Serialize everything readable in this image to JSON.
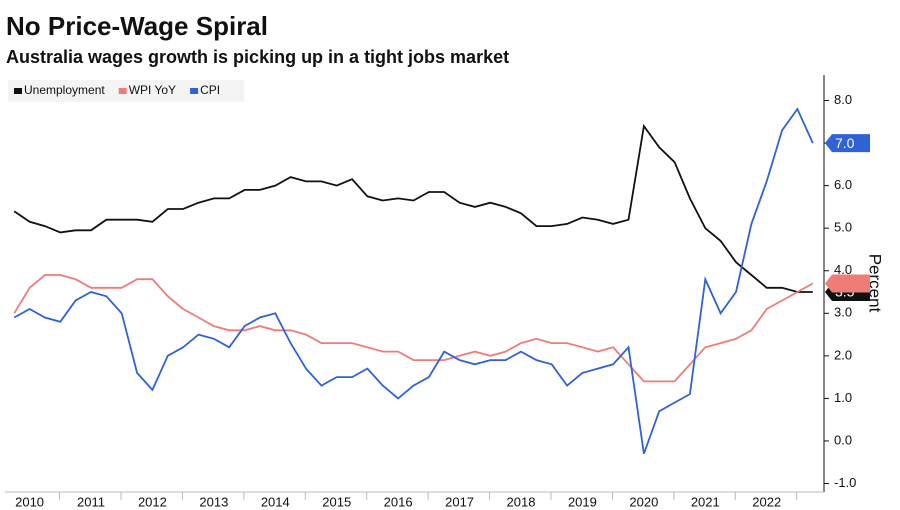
{
  "chart_data": {
    "type": "line",
    "title": "No Price-Wage Spiral",
    "subtitle": "Australia wages growth is picking up in a tight jobs market",
    "y_label": "Percent",
    "x": [
      2009.75,
      2010,
      2010.25,
      2010.5,
      2010.75,
      2011,
      2011.25,
      2011.5,
      2011.75,
      2012,
      2012.25,
      2012.5,
      2012.75,
      2013,
      2013.25,
      2013.5,
      2013.75,
      2014,
      2014.25,
      2014.5,
      2014.75,
      2015,
      2015.25,
      2015.5,
      2015.75,
      2016,
      2016.25,
      2016.5,
      2016.75,
      2017,
      2017.25,
      2017.5,
      2017.75,
      2018,
      2018.25,
      2018.5,
      2018.75,
      2019,
      2019.25,
      2019.5,
      2019.75,
      2020,
      2020.25,
      2020.5,
      2020.75,
      2021,
      2021.25,
      2021.5,
      2021.75,
      2022,
      2022.25,
      2022.5,
      2022.75
    ],
    "series": [
      {
        "name": "Unemployment",
        "color": "#111111",
        "values": [
          5.4,
          5.15,
          5.05,
          4.9,
          4.95,
          4.95,
          5.2,
          5.2,
          5.2,
          5.15,
          5.45,
          5.45,
          5.6,
          5.7,
          5.7,
          5.9,
          5.9,
          6.0,
          6.2,
          6.1,
          6.1,
          6.0,
          6.15,
          5.75,
          5.65,
          5.7,
          5.65,
          5.85,
          5.85,
          5.6,
          5.5,
          5.6,
          5.5,
          5.35,
          5.05,
          5.05,
          5.1,
          5.25,
          5.2,
          5.1,
          5.2,
          7.4,
          6.9,
          6.55,
          5.7,
          5.0,
          4.7,
          4.2,
          3.9,
          3.6,
          3.6,
          3.5,
          3.5
        ],
        "value_labels": [
          null,
          null,
          null,
          null,
          null,
          null,
          null,
          null,
          null,
          null,
          null,
          null,
          null,
          null,
          null,
          null,
          null,
          null,
          null,
          null,
          null,
          null,
          null,
          null,
          null,
          null,
          null,
          null,
          null,
          null,
          null,
          null,
          null,
          null,
          null,
          null,
          null,
          null,
          null,
          null,
          null,
          null,
          null,
          null,
          null,
          null,
          null,
          null,
          null,
          null,
          null,
          null,
          "3.5"
        ]
      },
      {
        "name": "WPI YoY",
        "color": "#f07c78",
        "values": [
          3.0,
          3.6,
          3.9,
          3.9,
          3.8,
          3.6,
          3.6,
          3.6,
          3.8,
          3.8,
          3.4,
          3.1,
          2.9,
          2.7,
          2.6,
          2.6,
          2.7,
          2.6,
          2.6,
          2.5,
          2.3,
          2.3,
          2.3,
          2.2,
          2.1,
          2.1,
          1.9,
          1.9,
          1.9,
          2.0,
          2.1,
          2.0,
          2.1,
          2.3,
          2.4,
          2.3,
          2.3,
          2.2,
          2.1,
          2.2,
          1.8,
          1.4,
          1.4,
          1.4,
          1.8,
          2.2,
          2.3,
          2.4,
          2.6,
          3.1,
          3.3,
          3.5,
          3.7
        ]
      },
      {
        "name": "CPI",
        "color": "#2f62d6",
        "values": [
          2.9,
          3.1,
          2.9,
          2.8,
          3.3,
          3.5,
          3.4,
          3.0,
          1.6,
          1.2,
          2.0,
          2.2,
          2.5,
          2.4,
          2.2,
          2.7,
          2.9,
          3.0,
          2.3,
          1.7,
          1.3,
          1.5,
          1.5,
          1.7,
          1.3,
          1.0,
          1.3,
          1.5,
          2.1,
          1.9,
          1.8,
          1.9,
          1.9,
          2.1,
          1.9,
          1.8,
          1.3,
          1.6,
          1.7,
          1.8,
          2.2,
          -0.3,
          0.7,
          0.9,
          1.1,
          3.8,
          3.0,
          3.5,
          5.1,
          6.1,
          7.3,
          7.8,
          7.0
        ],
        "value_labels": [
          null,
          null,
          null,
          null,
          null,
          null,
          null,
          null,
          null,
          null,
          null,
          null,
          null,
          null,
          null,
          null,
          null,
          null,
          null,
          null,
          null,
          null,
          null,
          null,
          null,
          null,
          null,
          null,
          null,
          null,
          null,
          null,
          null,
          null,
          null,
          null,
          null,
          null,
          null,
          null,
          null,
          null,
          null,
          null,
          null,
          null,
          null,
          null,
          null,
          null,
          null,
          null,
          "7.0"
        ]
      }
    ],
    "xlim": [
      2009.6,
      2022.9
    ],
    "xticks": [
      2010,
      2011,
      2012,
      2013,
      2014,
      2015,
      2016,
      2017,
      2018,
      2019,
      2020,
      2021,
      2022
    ],
    "ylim": [
      -1.2,
      8.6
    ],
    "yticks": [
      {
        "value": -1,
        "label": "-1.0"
      },
      {
        "value": 0,
        "label": "0.0"
      },
      {
        "value": 1,
        "label": "1.0"
      },
      {
        "value": 2,
        "label": "2.0"
      },
      {
        "value": 3,
        "label": "3.0"
      },
      {
        "value": 4,
        "label": "4.0"
      },
      {
        "value": 5,
        "label": "5.0"
      },
      {
        "value": 6,
        "label": "6.0"
      },
      {
        "value": 7,
        "label": "7.0"
      },
      {
        "value": 8,
        "label": "8.0"
      }
    ],
    "grid": false,
    "legend": "top-left"
  }
}
